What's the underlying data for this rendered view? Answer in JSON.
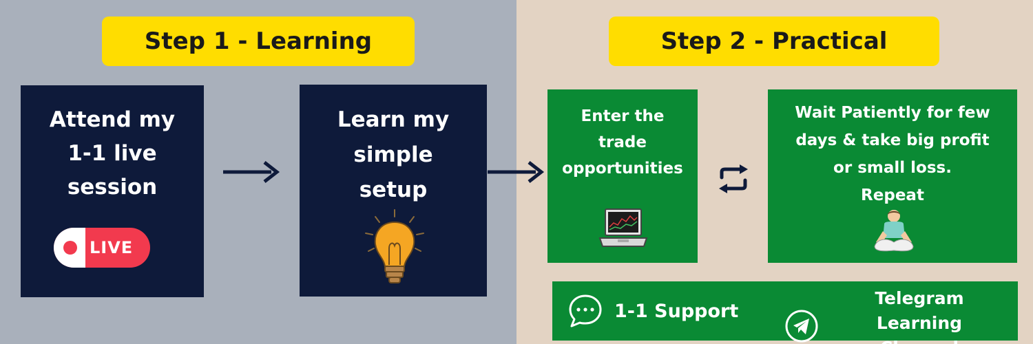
{
  "step1": {
    "title": "Step 1 - Learning",
    "box1": {
      "text": "Attend my\n1-1 live\nsession",
      "badge": "LIVE"
    },
    "box2": {
      "text": "Learn my\nsimple\nsetup"
    }
  },
  "step2": {
    "title": "Step 2 - Practical",
    "box3": {
      "text": "Enter the\ntrade\nopportunities"
    },
    "box4": {
      "text": "Wait Patiently for few\ndays &  take big profit\nor small loss.\nRepeat"
    }
  },
  "support": {
    "item1": "1-1 Support",
    "item2": "Telegram Learning\nChannel"
  },
  "colors": {
    "banner": "#ffdd00",
    "navy": "#0e1a3a",
    "green": "#0a8a34",
    "live_red": "#f23a4e"
  },
  "icons": [
    "live-icon",
    "lightbulb-icon",
    "laptop-icon",
    "repeat-icon",
    "meditating-person-icon",
    "chat-bubble-icon",
    "telegram-icon"
  ]
}
